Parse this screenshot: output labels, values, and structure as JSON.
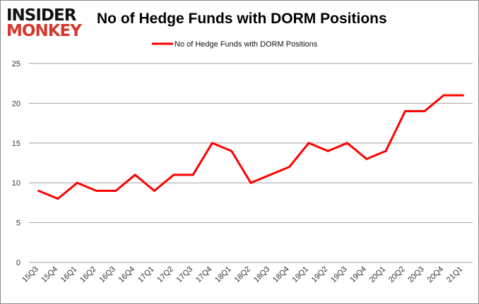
{
  "logo": {
    "line1": "INSIDER",
    "line2": "MONKEY"
  },
  "chart_data": {
    "type": "line",
    "title": "No of Hedge Funds with DORM Positions",
    "xlabel": "",
    "ylabel": "",
    "categories": [
      "15Q3",
      "15Q4",
      "16Q1",
      "16Q2",
      "16Q3",
      "16Q4",
      "17Q1",
      "17Q2",
      "17Q3",
      "17Q4",
      "18Q1",
      "18Q2",
      "18Q3",
      "18Q4",
      "19Q1",
      "19Q2",
      "19Q3",
      "19Q4",
      "20Q1",
      "20Q2",
      "20Q3",
      "20Q4",
      "21Q1"
    ],
    "series": [
      {
        "name": "No of Hedge Funds with DORM Positions",
        "color": "#ff0000",
        "values": [
          9,
          8,
          10,
          9,
          9,
          11,
          9,
          11,
          11,
          15,
          14,
          10,
          11,
          12,
          15,
          14,
          15,
          13,
          14,
          19,
          19,
          21,
          21
        ]
      }
    ],
    "ylim": [
      0,
      25
    ],
    "yticks": [
      0,
      5,
      10,
      15,
      20,
      25
    ],
    "grid": true,
    "legend": "top-center"
  }
}
